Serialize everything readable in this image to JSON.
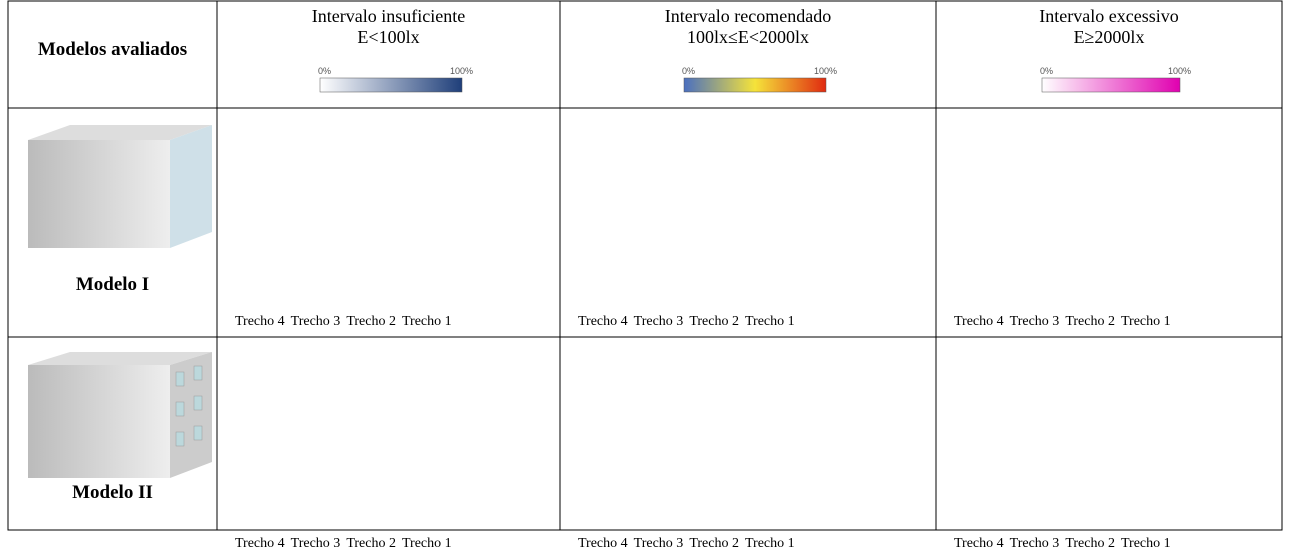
{
  "table": {
    "header": {
      "models": "Modelos avaliados",
      "columns": [
        {
          "title": "Intervalo insuficiente",
          "range": "E<100lx",
          "scale_min": "0%",
          "scale_max": "100%"
        },
        {
          "title": "Intervalo recomendado",
          "range": "100lx≤E<2000lx",
          "scale_min": "0%",
          "scale_max": "100%"
        },
        {
          "title": "Intervalo excessivo",
          "range": "E≥2000lx",
          "scale_min": "0%",
          "scale_max": "100%"
        }
      ]
    },
    "rows": [
      {
        "model": "Modelo I",
        "panels": [
          {
            "segments": [
              "Trecho 4",
              "Trecho 3",
              "Trecho 2",
              "Trecho 1"
            ]
          },
          {
            "segments": [
              "Trecho 4",
              "Trecho 3",
              "Trecho 2",
              "Trecho 1"
            ]
          },
          {
            "segments": [
              "Trecho 4",
              "Trecho 3",
              "Trecho 2",
              "Trecho 1"
            ]
          }
        ]
      },
      {
        "model": "Modelo II",
        "panels": [
          {
            "segments": [
              "Trecho 4",
              "Trecho 3",
              "Trecho 2",
              "Trecho 1"
            ]
          },
          {
            "segments": [
              "Trecho 4",
              "Trecho 3",
              "Trecho 2",
              "Trecho 1"
            ]
          },
          {
            "segments": [
              "Trecho 4",
              "Trecho 3",
              "Trecho 2",
              "Trecho 1"
            ]
          }
        ]
      }
    ]
  }
}
